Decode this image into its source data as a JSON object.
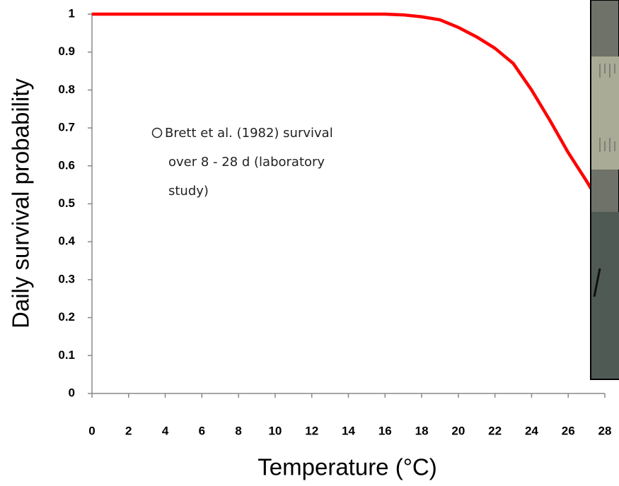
{
  "chart_data": {
    "type": "line",
    "x_label": "Temperature (°C)",
    "y_label": "Daily survival probability",
    "x": [
      0,
      2,
      4,
      6,
      8,
      10,
      12,
      14,
      16,
      17,
      18,
      19,
      20,
      21,
      22,
      23,
      24,
      25,
      26,
      27,
      28
    ],
    "series": [
      {
        "color": "#ff0000",
        "values": [
          1,
          1,
          1,
          1,
          1,
          1,
          1,
          1,
          1,
          0.998,
          0.993,
          0.985,
          0.965,
          0.94,
          0.91,
          0.87,
          0.8,
          0.72,
          0.635,
          0.56,
          0.48
        ]
      }
    ],
    "annotation": [
      "Brett et al. (1982) survival",
      "over 8 - 28 d (laboratory",
      "study)"
    ],
    "xlim": [
      0,
      28
    ],
    "xticks": [
      0,
      2,
      4,
      6,
      8,
      10,
      12,
      14,
      16,
      18,
      20,
      22,
      24,
      26,
      28
    ],
    "ylim": [
      0,
      1
    ],
    "yticks": [
      0,
      0.1,
      0.2,
      0.3,
      0.4,
      0.5,
      0.6,
      0.7,
      0.8,
      0.9,
      1
    ],
    "grid": false
  }
}
